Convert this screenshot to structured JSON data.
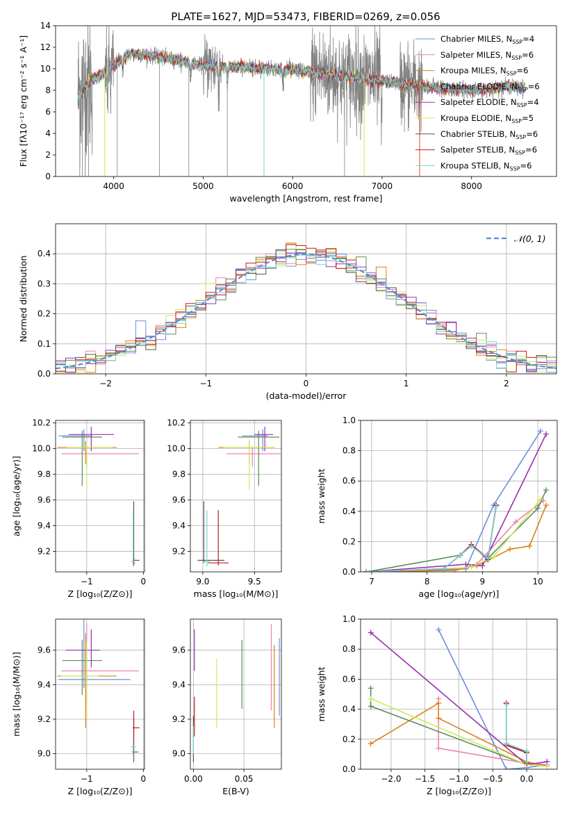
{
  "figure": {
    "title": "PLATE=1627, MJD=53473, FIBERID=0269, z=0.056"
  },
  "legend_spectrum": [
    {
      "model": "Chabrier MILES",
      "n": "4",
      "color": "#6a8fdc"
    },
    {
      "model": "Salpeter MILES",
      "n": "6",
      "color": "#e883b4"
    },
    {
      "model": "Kroupa MILES",
      "n": "6",
      "color": "#d98218"
    },
    {
      "model": "Chabrier ELODIE",
      "n": "6",
      "color": "#5a8a5a"
    },
    {
      "model": "Salpeter ELODIE",
      "n": "4",
      "color": "#9b2fae"
    },
    {
      "model": "Kroupa ELODIE",
      "n": "5",
      "color": "#d4e85a"
    },
    {
      "model": "Chabrier STELIB",
      "n": "6",
      "color": "#555555"
    },
    {
      "model": "Salpeter STELIB",
      "n": "6",
      "color": "#c41a1a"
    },
    {
      "model": "Kroupa STELIB",
      "n": "6",
      "color": "#7ad4d4"
    }
  ],
  "legend_hist": {
    "label": "𝒩(0, 1)",
    "color": "#5b8bd8"
  },
  "chart_data": [
    {
      "id": "spectrum",
      "type": "line",
      "title": "PLATE=1627, MJD=53473, FIBERID=0269, z=0.056",
      "xlabel": "wavelength [Angstrom, rest frame]",
      "ylabel": "Flux [fλ10⁻¹⁷ erg cm⁻² s⁻¹ A⁻¹]",
      "xlim": [
        3350,
        8950
      ],
      "ylim": [
        0,
        14
      ],
      "xticks": [
        4000,
        5000,
        6000,
        7000,
        8000
      ],
      "yticks": [
        0,
        2,
        4,
        6,
        8,
        10,
        12,
        14
      ],
      "grid": false,
      "legend": "top-right",
      "data_range": [
        3600,
        8600
      ],
      "continuum": [
        [
          3600,
          7.6
        ],
        [
          3700,
          8.6
        ],
        [
          3800,
          9.2
        ],
        [
          3900,
          9.6
        ],
        [
          4000,
          10.3
        ],
        [
          4100,
          11.0
        ],
        [
          4200,
          11.4
        ],
        [
          4300,
          11.3
        ],
        [
          4400,
          11.2
        ],
        [
          4600,
          11.0
        ],
        [
          4800,
          10.7
        ],
        [
          5000,
          10.3
        ],
        [
          5200,
          10.2
        ],
        [
          5500,
          10.1
        ],
        [
          5800,
          10.0
        ],
        [
          6000,
          9.9
        ],
        [
          6200,
          9.7
        ],
        [
          6500,
          9.4
        ],
        [
          7000,
          8.9
        ],
        [
          7500,
          8.3
        ],
        [
          8000,
          8.0
        ],
        [
          8200,
          8.1
        ],
        [
          8400,
          8.4
        ],
        [
          8600,
          8.2
        ]
      ],
      "absorption_lines": [
        3933,
        3968,
        4101,
        4861,
        5175,
        5270,
        5893,
        6563
      ],
      "dips": [
        [
          3900,
          0
        ],
        [
          5680,
          0
        ],
        [
          6800,
          0
        ],
        [
          7420,
          0
        ]
      ],
      "noise_regions": [
        [
          3600,
          3760,
          3.5
        ],
        [
          3900,
          4000,
          2.0
        ],
        [
          5000,
          5200,
          1.5
        ],
        [
          6200,
          7000,
          2.2
        ],
        [
          7200,
          7450,
          2.0
        ]
      ]
    },
    {
      "id": "residual_hist",
      "type": "line",
      "xlabel": "(data-model)/error",
      "ylabel": "Normed distribution",
      "xlim": [
        -2.5,
        2.5
      ],
      "ylim": [
        0,
        0.5
      ],
      "xticks": [
        -2,
        -1,
        0,
        1,
        2
      ],
      "yticks": [
        0.0,
        0.1,
        0.2,
        0.3,
        0.4
      ],
      "grid": true,
      "legend": "top-right",
      "bin_width": 0.1,
      "gaussian": {
        "mu": 0,
        "sigma": 1
      }
    },
    {
      "id": "age_vs_Z",
      "type": "scatter",
      "xlabel": "Z [log₁₀(Z/Z⊙)]",
      "ylabel": "age  [log₁₀(age/yr)]",
      "xlim": [
        -1.55,
        0.02
      ],
      "ylim": [
        9.04,
        10.22
      ],
      "xticks": [
        -1,
        0
      ],
      "yticks": [
        9.2,
        9.4,
        9.6,
        9.8,
        10.0,
        10.2
      ],
      "grid": true,
      "points": [
        {
          "x": -1.05,
          "xerr": [
            0.45,
            0.15
          ],
          "y": 10.1,
          "yerr": [
            0.12,
            0.05
          ],
          "color": "#6a8fdc"
        },
        {
          "x": -1.0,
          "xerr": [
            0.45,
            0.92
          ],
          "y": 9.96,
          "yerr": [
            0.1,
            0.05
          ],
          "color": "#e883b4"
        },
        {
          "x": -1.02,
          "xerr": [
            0.5,
            0.55
          ],
          "y": 10.01,
          "yerr": [
            0.13,
            0.05
          ],
          "color": "#d98218"
        },
        {
          "x": -1.08,
          "xerr": [
            0.35,
            0.35
          ],
          "y": 10.09,
          "yerr": [
            0.38,
            0.05
          ],
          "color": "#5a8a5a"
        },
        {
          "x": -0.92,
          "xerr": [
            0.4,
            0.4
          ],
          "y": 10.11,
          "yerr": [
            0.13,
            0.06
          ],
          "color": "#9b2fae"
        },
        {
          "x": -1.0,
          "xerr": [
            0.35,
            0.45
          ],
          "y": 10.01,
          "yerr": [
            0.33,
            0.06
          ],
          "color": "#d4e85a"
        },
        {
          "x": -0.17,
          "xerr": [
            0.02,
            0.1
          ],
          "y": 9.13,
          "yerr": [
            0.02,
            0.46
          ],
          "color": "#555555"
        },
        {
          "x": -0.17,
          "xerr": [
            0.02,
            0.02
          ],
          "y": 9.11,
          "yerr": [
            0.02,
            0.05
          ],
          "color": "#c41a1a"
        },
        {
          "x": -0.18,
          "xerr": [
            0.04,
            0.02
          ],
          "y": 9.12,
          "yerr": [
            0.04,
            0.4
          ],
          "color": "#7ad4d4"
        }
      ]
    },
    {
      "id": "age_vs_mass",
      "type": "scatter",
      "xlabel": "mass [log₁₀(M/M⊙)]",
      "ylabel": "",
      "xlim": [
        8.88,
        9.76
      ],
      "ylim": [
        9.04,
        10.22
      ],
      "xticks": [
        9.0,
        9.5
      ],
      "yticks": [
        9.2,
        9.4,
        9.6,
        9.8,
        10.0,
        10.2
      ],
      "grid": true,
      "points": [
        {
          "x": 9.58,
          "xerr": [
            0.2,
            0.05
          ],
          "y": 10.1,
          "yerr": [
            0.12,
            0.05
          ],
          "color": "#6a8fdc"
        },
        {
          "x": 9.48,
          "xerr": [
            0.25,
            0.27
          ],
          "y": 9.96,
          "yerr": [
            0.1,
            0.05
          ],
          "color": "#e883b4"
        },
        {
          "x": 9.45,
          "xerr": [
            0.3,
            0.25
          ],
          "y": 10.01,
          "yerr": [
            0.13,
            0.05
          ],
          "color": "#d98218"
        },
        {
          "x": 9.54,
          "xerr": [
            0.2,
            0.2
          ],
          "y": 10.09,
          "yerr": [
            0.38,
            0.05
          ],
          "color": "#5a8a5a"
        },
        {
          "x": 9.6,
          "xerr": [
            0.1,
            0.08
          ],
          "y": 10.11,
          "yerr": [
            0.13,
            0.06
          ],
          "color": "#9b2fae"
        },
        {
          "x": 9.45,
          "xerr": [
            0.25,
            0.25
          ],
          "y": 10.01,
          "yerr": [
            0.33,
            0.06
          ],
          "color": "#d4e85a"
        },
        {
          "x": 9.01,
          "xerr": [
            0.06,
            0.2
          ],
          "y": 9.13,
          "yerr": [
            0.02,
            0.46
          ],
          "color": "#555555"
        },
        {
          "x": 9.15,
          "xerr": [
            0.1,
            0.1
          ],
          "y": 9.11,
          "yerr": [
            0.02,
            0.41
          ],
          "color": "#c41a1a"
        },
        {
          "x": 9.04,
          "xerr": [
            0.03,
            0.03
          ],
          "y": 9.12,
          "yerr": [
            0.04,
            0.4
          ],
          "color": "#7ad4d4"
        }
      ]
    },
    {
      "id": "weight_vs_age",
      "type": "line",
      "xlabel": "age  [log₁₀(age/yr)]",
      "ylabel": "mass weight",
      "xlim": [
        6.8,
        10.35
      ],
      "ylim": [
        0,
        1.0
      ],
      "xticks": [
        7,
        8,
        9,
        10
      ],
      "yticks": [
        0.0,
        0.2,
        0.4,
        0.6,
        0.8,
        1.0
      ],
      "grid": true,
      "series": [
        {
          "color": "#6a8fdc",
          "x": [
            6.9,
            8.7,
            9.2,
            10.05
          ],
          "y": [
            0.0,
            0.02,
            0.44,
            0.93
          ]
        },
        {
          "color": "#e883b4",
          "x": [
            6.9,
            8.5,
            8.9,
            9.6,
            10.1
          ],
          "y": [
            0.0,
            0.01,
            0.05,
            0.33,
            0.47
          ]
        },
        {
          "color": "#d98218",
          "x": [
            6.9,
            8.5,
            8.9,
            9.5,
            9.85,
            10.15
          ],
          "y": [
            0.0,
            0.01,
            0.04,
            0.15,
            0.17,
            0.44
          ]
        },
        {
          "color": "#5a8a5a",
          "x": [
            6.9,
            8.6,
            8.8,
            9.1,
            10.0,
            10.15
          ],
          "y": [
            0.0,
            0.11,
            0.17,
            0.09,
            0.42,
            0.54
          ]
        },
        {
          "color": "#9b2fae",
          "x": [
            6.9,
            8.7,
            9.0,
            10.15
          ],
          "y": [
            0.0,
            0.05,
            0.04,
            0.91
          ]
        },
        {
          "color": "#d4e85a",
          "x": [
            6.9,
            8.8,
            9.2,
            10.05
          ],
          "y": [
            0.0,
            0.03,
            0.1,
            0.48
          ]
        },
        {
          "color": "#555555",
          "x": [
            6.9,
            8.3,
            8.6,
            8.8,
            9.1,
            9.25
          ],
          "y": [
            0.0,
            0.02,
            0.11,
            0.18,
            0.08,
            0.44
          ]
        },
        {
          "color": "#c41a1a",
          "x": [
            6.9,
            8.3,
            8.6,
            8.8,
            9.1,
            9.25
          ],
          "y": [
            0.0,
            0.02,
            0.11,
            0.18,
            0.09,
            0.44
          ]
        },
        {
          "color": "#7ad4d4",
          "x": [
            6.9,
            8.3,
            8.6,
            8.8,
            9.1,
            9.25
          ],
          "y": [
            0.0,
            0.02,
            0.11,
            0.17,
            0.09,
            0.43
          ]
        }
      ]
    },
    {
      "id": "mass_vs_Z",
      "type": "scatter",
      "xlabel": "Z [log₁₀(Z/Z⊙)]",
      "ylabel": "mass [log₁₀(M/M⊙)]",
      "xlim": [
        -1.55,
        0.02
      ],
      "ylim": [
        8.91,
        9.78
      ],
      "xticks": [
        -1,
        0
      ],
      "yticks": [
        9.0,
        9.2,
        9.4,
        9.6
      ],
      "grid": true,
      "points": [
        {
          "x": -1.05,
          "xerr": [
            0.45,
            0.82
          ],
          "y": 9.43,
          "yerr": [
            0.05,
            0.35
          ],
          "color": "#6a8fdc"
        },
        {
          "x": -1.0,
          "xerr": [
            0.45,
            0.92
          ],
          "y": 9.48,
          "yerr": [
            0.22,
            0.27
          ],
          "color": "#e883b4"
        },
        {
          "x": -1.02,
          "xerr": [
            0.5,
            0.55
          ],
          "y": 9.45,
          "yerr": [
            0.3,
            0.25
          ],
          "color": "#d98218"
        },
        {
          "x": -1.08,
          "xerr": [
            0.35,
            0.35
          ],
          "y": 9.54,
          "yerr": [
            0.2,
            0.12
          ],
          "color": "#5a8a5a"
        },
        {
          "x": -0.92,
          "xerr": [
            0.45,
            0.15
          ],
          "y": 9.6,
          "yerr": [
            0.1,
            0.12
          ],
          "color": "#9b2fae"
        },
        {
          "x": -1.0,
          "xerr": [
            0.45,
            0.2
          ],
          "y": 9.45,
          "yerr": [
            0.25,
            0.2
          ],
          "color": "#d4e85a"
        },
        {
          "x": -0.17,
          "xerr": [
            0.03,
            0.08
          ],
          "y": 9.01,
          "yerr": [
            0.06,
            0.2
          ],
          "color": "#555555"
        },
        {
          "x": -0.17,
          "xerr": [
            0.02,
            0.1
          ],
          "y": 9.15,
          "yerr": [
            0.1,
            0.1
          ],
          "color": "#c41a1a"
        },
        {
          "x": -0.18,
          "xerr": [
            0.04,
            0.05
          ],
          "y": 9.04,
          "yerr": [
            0.05,
            0.05
          ],
          "color": "#7ad4d4"
        }
      ]
    },
    {
      "id": "mass_vs_ebv",
      "type": "scatter",
      "xlabel": "E(B-V)",
      "ylabel": "",
      "xlim": [
        -0.003,
        0.087
      ],
      "ylim": [
        8.91,
        9.78
      ],
      "xticks": [
        0.0,
        0.05
      ],
      "yticks": [
        9.0,
        9.2,
        9.4,
        9.6
      ],
      "grid": true,
      "points": [
        {
          "x": 0.085,
          "y": 9.42,
          "yerr": [
            0.2,
            0.25
          ],
          "color": "#6a8fdc"
        },
        {
          "x": 0.077,
          "y": 9.5,
          "yerr": [
            0.25,
            0.25
          ],
          "color": "#e883b4"
        },
        {
          "x": 0.08,
          "y": 9.4,
          "yerr": [
            0.25,
            0.23
          ],
          "color": "#d98218"
        },
        {
          "x": 0.048,
          "y": 9.46,
          "yerr": [
            0.2,
            0.2
          ],
          "color": "#5a8a5a"
        },
        {
          "x": 0.001,
          "y": 9.6,
          "yerr": [
            0.12,
            0.12
          ],
          "color": "#9b2fae"
        },
        {
          "x": 0.023,
          "y": 9.35,
          "yerr": [
            0.2,
            0.2
          ],
          "color": "#d4e85a"
        },
        {
          "x": 0.0,
          "y": 9.05,
          "yerr": [
            0.1,
            0.17
          ],
          "color": "#555555"
        },
        {
          "x": 0.001,
          "y": 9.2,
          "yerr": [
            0.1,
            0.13
          ],
          "color": "#c41a1a"
        },
        {
          "x": 0.0,
          "y": 9.08,
          "yerr": [
            0.08,
            0.08
          ],
          "color": "#7ad4d4"
        }
      ]
    },
    {
      "id": "weight_vs_Z",
      "type": "line",
      "xlabel": "Z [log₁₀(Z/Z⊙)]",
      "ylabel": "mass weight",
      "xlim": [
        -2.45,
        0.45
      ],
      "ylim": [
        0,
        1.0
      ],
      "xticks": [
        -2.0,
        -1.5,
        -1.0,
        -0.5,
        0.0
      ],
      "yticks": [
        0.0,
        0.2,
        0.4,
        0.6,
        0.8,
        1.0
      ],
      "grid": true,
      "series": [
        {
          "color": "#6a8fdc",
          "x": [
            -1.3,
            -0.3,
            0.0,
            0.3
          ],
          "y": [
            0.93,
            0.0,
            0.01,
            0.03
          ]
        },
        {
          "color": "#e883b4",
          "x": [
            -1.3,
            -1.3,
            0.0,
            0.3
          ],
          "y": [
            0.47,
            0.14,
            0.04,
            0.03
          ]
        },
        {
          "color": "#d98218",
          "x": [
            -2.3,
            -1.3,
            -1.3,
            0.0,
            0.3
          ],
          "y": [
            0.17,
            0.44,
            0.34,
            0.05,
            0.02
          ]
        },
        {
          "color": "#5a8a5a",
          "x": [
            -2.3,
            -2.3,
            0.0,
            0.3
          ],
          "y": [
            0.54,
            0.42,
            0.03,
            0.02
          ]
        },
        {
          "color": "#9b2fae",
          "x": [
            -2.3,
            0.0,
            0.3
          ],
          "y": [
            0.91,
            0.03,
            0.05
          ]
        },
        {
          "color": "#d4e85a",
          "x": [
            -2.3,
            0.0,
            0.3
          ],
          "y": [
            0.47,
            0.03,
            0.02
          ]
        },
        {
          "color": "#555555",
          "x": [
            -0.3,
            -0.3,
            0.0,
            0.0
          ],
          "y": [
            0.44,
            0.17,
            0.11,
            0.05
          ]
        },
        {
          "color": "#c41a1a",
          "x": [
            -0.3,
            -0.3,
            0.0,
            0.0
          ],
          "y": [
            0.44,
            0.16,
            0.11,
            0.04
          ]
        },
        {
          "color": "#7ad4d4",
          "x": [
            -0.3,
            -0.3,
            0.0,
            0.0
          ],
          "y": [
            0.43,
            0.17,
            0.12,
            0.05
          ]
        }
      ]
    }
  ]
}
